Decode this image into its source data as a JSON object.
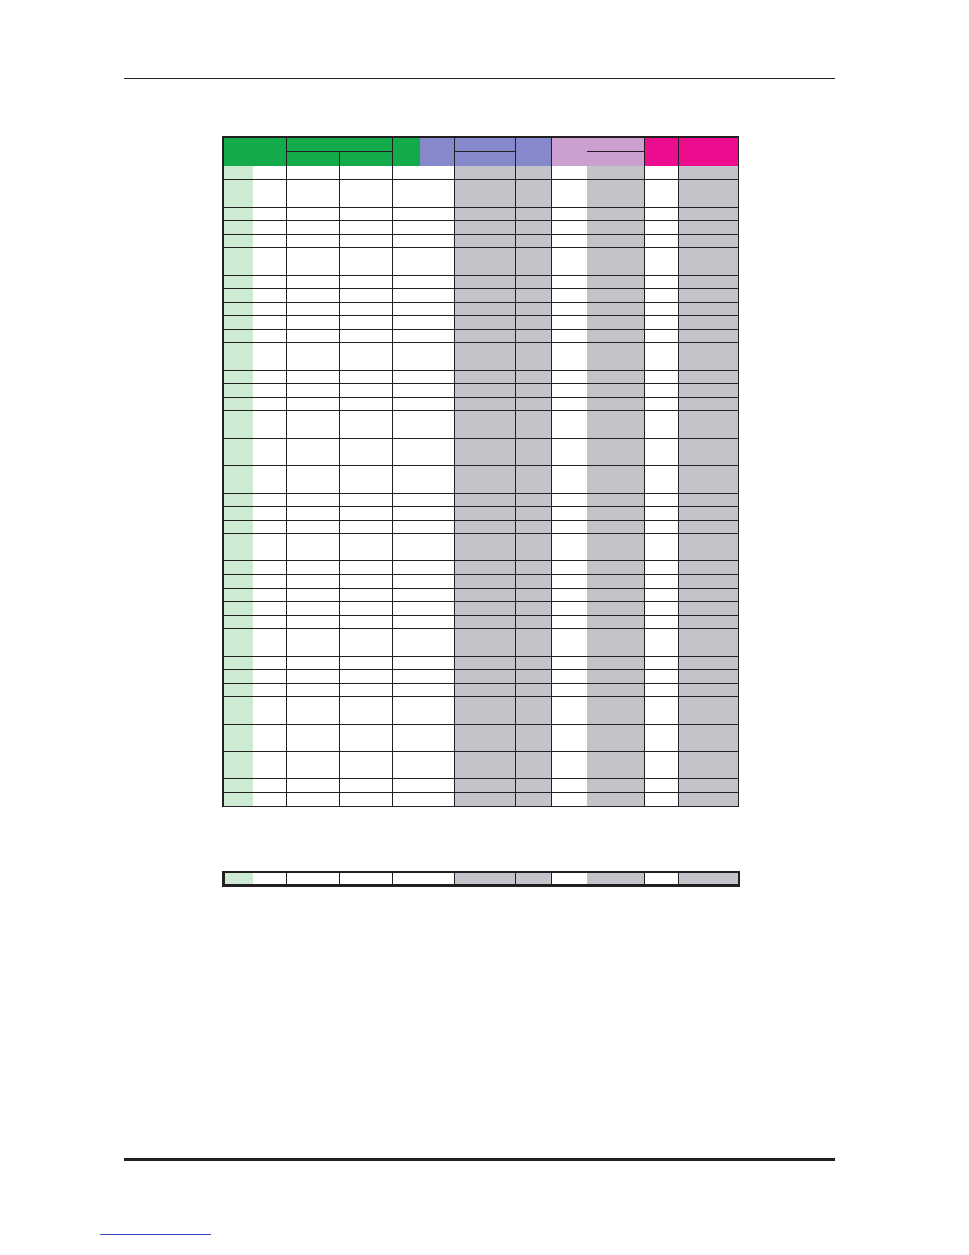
{
  "colors": {
    "header_green": "#13ab4a",
    "header_blue": "#8589cb",
    "header_lilac": "#cb9fd0",
    "header_magenta": "#ec0c8e",
    "first_column_fill": "#cdebd2",
    "shaded_cell_fill": "#c2c4ca",
    "blank_cell_fill": "#ffffff",
    "rule_color": "#231f20"
  },
  "table": {
    "row_count": 47,
    "header_cells": [],
    "rows": []
  },
  "total_row": {
    "cells": []
  }
}
